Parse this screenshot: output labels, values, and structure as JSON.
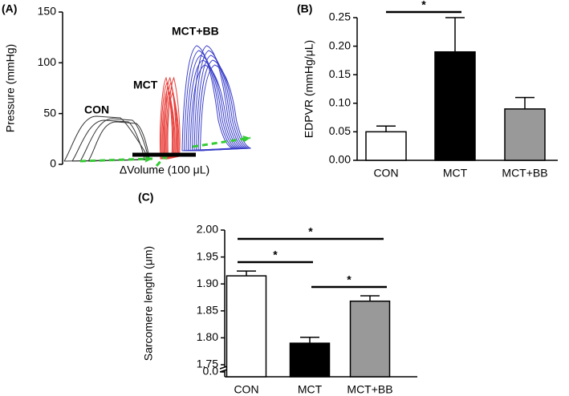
{
  "chart_data": [
    {
      "type": "line",
      "panel_label": "(A)",
      "y_label": "Pressure (mmHg)",
      "ylim": [
        0,
        150
      ],
      "yticks": [
        0,
        50,
        100,
        150
      ],
      "annotations": [
        "CON",
        "MCT",
        "MCT+BB"
      ],
      "scale_bar_label": "ΔVolume (100 μL)",
      "colors": [
        "#333333",
        "#e8413c",
        "#3a3fc9",
        "#33cc33"
      ]
    },
    {
      "type": "bar",
      "panel_label": "(B)",
      "y_label": "EDPVR (mmHg/μL)",
      "categories": [
        "CON",
        "MCT",
        "MCT+BB"
      ],
      "values": [
        0.05,
        0.19,
        0.09
      ],
      "errors": [
        0.01,
        0.06,
        0.02
      ],
      "colors": [
        "#ffffff",
        "#000000",
        "#999999"
      ],
      "ylim": [
        0,
        0.25
      ],
      "yticks": [
        {
          "value": 0,
          "label": "0.00"
        },
        {
          "value": 0.05,
          "label": "0.05"
        },
        {
          "value": 0.1,
          "label": "0.10"
        },
        {
          "value": 0.15,
          "label": "0.15"
        },
        {
          "value": 0.2,
          "label": "0.20"
        },
        {
          "value": 0.25,
          "label": "0.25"
        }
      ],
      "annotations": [
        "*"
      ]
    },
    {
      "type": "bar",
      "panel_label": "(C)",
      "y_label": "Sarcomere length (μm)",
      "categories": [
        "CON",
        "MCT",
        "MCT+BB"
      ],
      "values": [
        1.915,
        1.79,
        1.868
      ],
      "errors": [
        0.009,
        0.011,
        0.01
      ],
      "colors": [
        "#ffffff",
        "#000000",
        "#999999"
      ],
      "ylim": [
        1.75,
        2.0
      ],
      "axis_break": true,
      "yticks": [
        {
          "value": 0,
          "label": "0.0"
        },
        {
          "value": 1.75,
          "label": "1.75"
        },
        {
          "value": 1.8,
          "label": "1.80"
        },
        {
          "value": 1.85,
          "label": "1.85"
        },
        {
          "value": 1.9,
          "label": "1.90"
        },
        {
          "value": 1.95,
          "label": "1.95"
        },
        {
          "value": 2.0,
          "label": "2.00"
        }
      ],
      "annotations": [
        "*",
        "*",
        "*"
      ]
    }
  ]
}
